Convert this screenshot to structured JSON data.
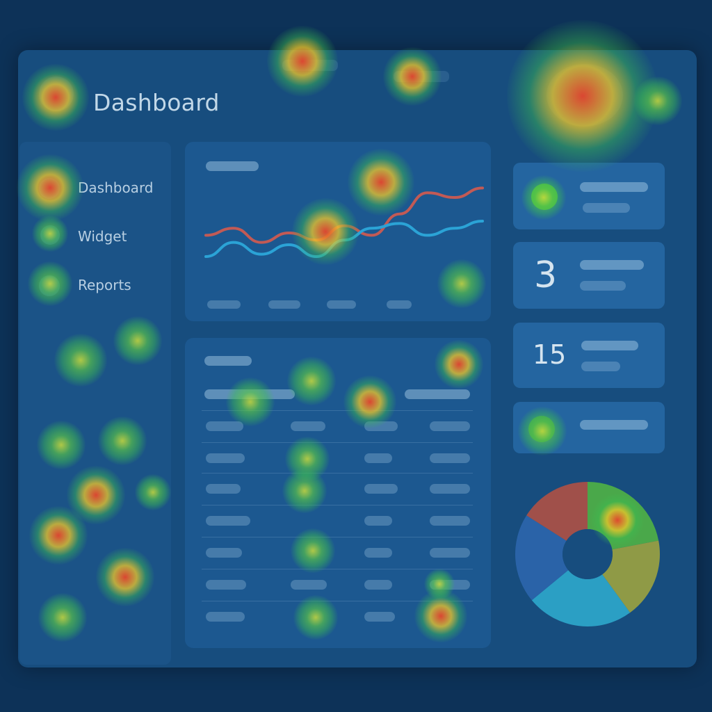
{
  "header": {
    "title": "Dashboard"
  },
  "sidebar": {
    "items": [
      {
        "label": "Dashboard"
      },
      {
        "label": "Widget"
      },
      {
        "label": "Reports"
      }
    ]
  },
  "stat_cards": [
    {
      "value": ""
    },
    {
      "value": "3"
    },
    {
      "value": "15"
    },
    {
      "value": ""
    }
  ],
  "colors": {
    "background": "#0d3258",
    "panel": "#1c5890",
    "line_red": "#c25a55",
    "line_cyan": "#2ba3d6",
    "pie_red": "#a0504a",
    "pie_green": "#4aa84a",
    "pie_olive": "#8f9a46",
    "pie_cyan": "#2b9fc4",
    "pie_blue": "#2a63a8"
  },
  "chart_data": [
    {
      "type": "line",
      "x": [
        0,
        1,
        2,
        3,
        4,
        5,
        6,
        7,
        8,
        9,
        10
      ],
      "series": [
        {
          "values": [
            48,
            54,
            42,
            50,
            44,
            56,
            48,
            66,
            84,
            80,
            88
          ]
        },
        {
          "values": [
            30,
            42,
            32,
            40,
            30,
            44,
            54,
            58,
            48,
            54,
            60
          ]
        }
      ],
      "ylim": [
        0,
        100
      ]
    },
    {
      "type": "pie",
      "values": [
        22,
        18,
        24,
        20,
        16
      ]
    }
  ]
}
